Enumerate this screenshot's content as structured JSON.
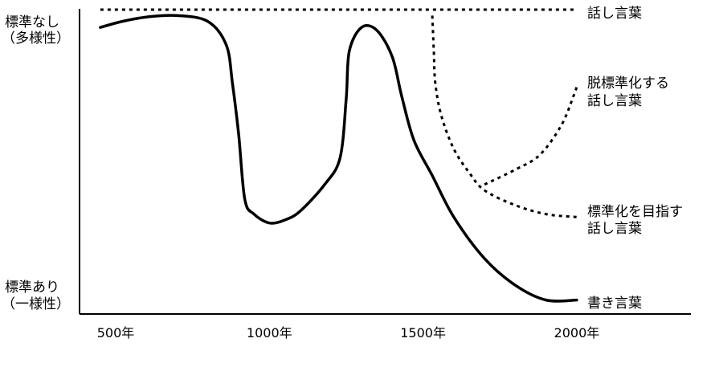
{
  "chart_data": {
    "type": "line",
    "title": "",
    "xlabel": "",
    "ylabel": "",
    "xlim": [
      400,
      2050
    ],
    "x_ticks": [
      {
        "value": 500,
        "label": "500年"
      },
      {
        "value": 1000,
        "label": "1000年"
      },
      {
        "value": 1500,
        "label": "1500年"
      },
      {
        "value": 2000,
        "label": "2000年"
      }
    ],
    "ylim": [
      0,
      1
    ],
    "y_labels": {
      "top": [
        "標準なし",
        "（多様性）"
      ],
      "bottom": [
        "標準あり",
        "（一様性）"
      ]
    },
    "series": [
      {
        "name": "話し言葉",
        "style": "dotted",
        "label_lines": [
          "話し言葉"
        ],
        "points": [
          [
            450,
            1.0
          ],
          [
            2000,
            1.0
          ]
        ]
      },
      {
        "name": "書き言葉",
        "style": "solid",
        "label_lines": [
          "書き言葉"
        ],
        "points": [
          [
            450,
            0.94
          ],
          [
            520,
            0.96
          ],
          [
            600,
            0.975
          ],
          [
            700,
            0.98
          ],
          [
            800,
            0.96
          ],
          [
            860,
            0.88
          ],
          [
            880,
            0.75
          ],
          [
            900,
            0.58
          ],
          [
            920,
            0.36
          ],
          [
            950,
            0.31
          ],
          [
            1000,
            0.28
          ],
          [
            1050,
            0.29
          ],
          [
            1100,
            0.32
          ],
          [
            1180,
            0.41
          ],
          [
            1230,
            0.5
          ],
          [
            1250,
            0.7
          ],
          [
            1260,
            0.86
          ],
          [
            1300,
            0.94
          ],
          [
            1350,
            0.93
          ],
          [
            1400,
            0.84
          ],
          [
            1430,
            0.71
          ],
          [
            1470,
            0.56
          ],
          [
            1530,
            0.44
          ],
          [
            1600,
            0.3
          ],
          [
            1700,
            0.16
          ],
          [
            1800,
            0.07
          ],
          [
            1900,
            0.02
          ],
          [
            2000,
            0.02
          ]
        ]
      },
      {
        "name": "脱標準化する話し言葉",
        "style": "dotted",
        "label_lines": [
          "脱標準化する",
          "話し言葉"
        ],
        "points": [
          [
            1700,
            0.41
          ],
          [
            1800,
            0.46
          ],
          [
            1880,
            0.51
          ],
          [
            1950,
            0.61
          ],
          [
            1990,
            0.71
          ],
          [
            2000,
            0.74
          ]
        ]
      },
      {
        "name": "標準化を目指す話し言葉",
        "style": "dotted",
        "label_lines": [
          "標準化を目指す",
          "話し言葉"
        ],
        "points": [
          [
            1530,
            0.98
          ],
          [
            1535,
            0.86
          ],
          [
            1540,
            0.75
          ],
          [
            1560,
            0.64
          ],
          [
            1600,
            0.53
          ],
          [
            1650,
            0.45
          ],
          [
            1700,
            0.39
          ],
          [
            1800,
            0.34
          ],
          [
            1900,
            0.31
          ],
          [
            2000,
            0.3
          ]
        ]
      }
    ]
  }
}
